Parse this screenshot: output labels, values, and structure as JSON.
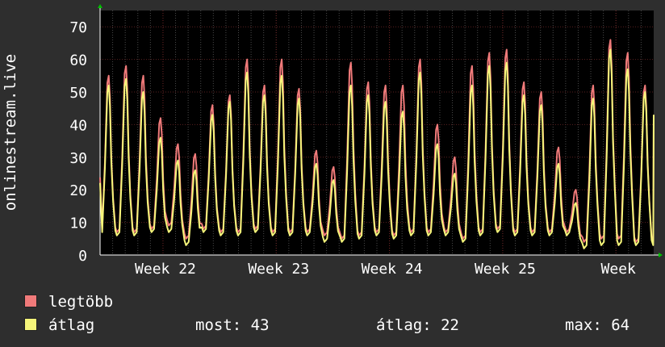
{
  "chart_data": {
    "type": "line",
    "ylabel": "onlinestream.live",
    "yticks": [
      0,
      10,
      20,
      30,
      40,
      50,
      60,
      70
    ],
    "ylim": [
      0,
      75
    ],
    "xlim": [
      0,
      88
    ],
    "x_ticks": [
      {
        "label": "Week 22",
        "x": 10
      },
      {
        "label": "Week 23",
        "x": 28
      },
      {
        "label": "Week 24",
        "x": 46
      },
      {
        "label": "Week 25",
        "x": 64
      },
      {
        "label": "Week",
        "x": 82
      }
    ],
    "grid": true,
    "legend": "bottom-left",
    "peaks_max": [
      55,
      58,
      55,
      42,
      34,
      31,
      46,
      49,
      60,
      52,
      60,
      51,
      32,
      27,
      59,
      53,
      52,
      52,
      60,
      40,
      30,
      58,
      62,
      63,
      53,
      50,
      33,
      20,
      52,
      66,
      62,
      52
    ],
    "peaks_avg": [
      52,
      54,
      50,
      36,
      29,
      26,
      43,
      47,
      56,
      49,
      55,
      48,
      28,
      23,
      52,
      49,
      47,
      44,
      56,
      34,
      25,
      52,
      58,
      59,
      49,
      46,
      28,
      16,
      48,
      63,
      57,
      50
    ],
    "lows_max": [
      7,
      7,
      8,
      9,
      5,
      8,
      7,
      7,
      8,
      7,
      7,
      7,
      6,
      5,
      6,
      7,
      6,
      7,
      7,
      7,
      5,
      7,
      8,
      7,
      7,
      7,
      7,
      4,
      5,
      5,
      4
    ],
    "lows_avg": [
      6,
      6,
      7,
      7,
      3,
      7,
      6,
      6,
      7,
      6,
      6,
      6,
      4,
      4,
      5,
      6,
      5,
      6,
      6,
      6,
      4,
      6,
      7,
      6,
      6,
      6,
      6,
      2,
      3,
      3,
      3
    ],
    "series": [
      {
        "name": "legtöbb",
        "color": "#f07a7a"
      },
      {
        "name": "átlag",
        "color": "#f5f57a"
      }
    ]
  },
  "legend": {
    "items": [
      {
        "label": "legtöbb",
        "color": "#f07a7a"
      },
      {
        "label": "átlag",
        "color": "#f5f57a"
      }
    ],
    "stats": [
      {
        "text": "most: 43"
      },
      {
        "text": "átlag: 22"
      },
      {
        "text": "max: 64"
      }
    ]
  }
}
